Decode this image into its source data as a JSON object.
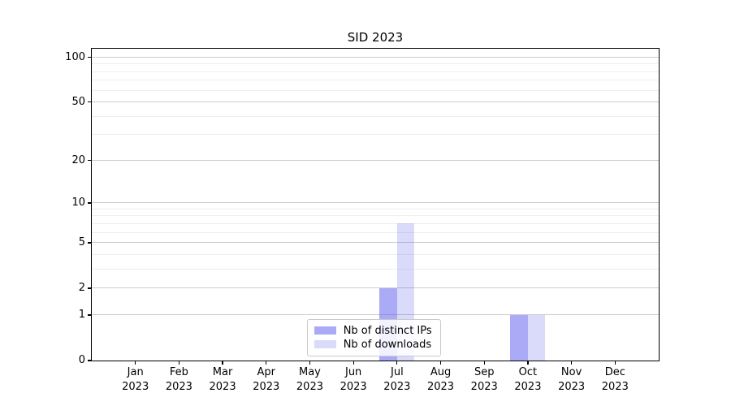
{
  "chart_data": {
    "type": "bar",
    "title": "SID 2023",
    "x_tick_labels": [
      {
        "month": "Jan",
        "year": "2023"
      },
      {
        "month": "Feb",
        "year": "2023"
      },
      {
        "month": "Mar",
        "year": "2023"
      },
      {
        "month": "Apr",
        "year": "2023"
      },
      {
        "month": "May",
        "year": "2023"
      },
      {
        "month": "Jun",
        "year": "2023"
      },
      {
        "month": "Jul",
        "year": "2023"
      },
      {
        "month": "Aug",
        "year": "2023"
      },
      {
        "month": "Sep",
        "year": "2023"
      },
      {
        "month": "Oct",
        "year": "2023"
      },
      {
        "month": "Nov",
        "year": "2023"
      },
      {
        "month": "Dec",
        "year": "2023"
      }
    ],
    "series": [
      {
        "name": "Nb of distinct IPs",
        "fill": "rgba(85,85,238,0.50)",
        "fill_hex_on_white": "#aaaaf6",
        "values": [
          0,
          0,
          0,
          0,
          0,
          0,
          2,
          0,
          0,
          1,
          0,
          0
        ]
      },
      {
        "name": "Nb of downloads",
        "fill": "rgba(85,85,238,0.22)",
        "fill_hex_on_white": "#dcdcfa",
        "values": [
          0,
          0,
          0,
          0,
          0,
          0,
          7,
          0,
          0,
          1,
          0,
          0
        ]
      }
    ],
    "y_axis": {
      "scale": "log1p",
      "major_ticks": [
        0,
        1,
        2,
        5,
        10,
        20,
        50,
        100
      ],
      "minor_ticks": [
        3,
        4,
        6,
        7,
        8,
        9,
        30,
        40,
        60,
        70,
        80,
        90
      ],
      "max": 114
    },
    "legend": {
      "position": "lower center",
      "entries": [
        "Nb of distinct IPs",
        "Nb of downloads"
      ]
    },
    "grid": "horizontal major and minor",
    "colors": {
      "grid_major": "#cccccc",
      "grid_minor": "#eeeeee",
      "spine": "#000000",
      "background": "#ffffff"
    }
  }
}
